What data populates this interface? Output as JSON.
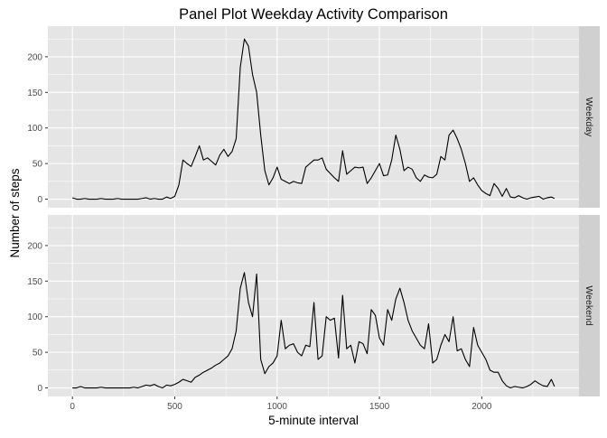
{
  "chart_data": {
    "type": "line",
    "title": "Panel Plot Weekday Activity Comparison",
    "xlabel": "5-minute interval",
    "ylabel": "Number of steps",
    "xlim": [
      -120,
      2475
    ],
    "ylim": [
      -12,
      243
    ],
    "x_ticks": [
      0,
      500,
      1000,
      1500,
      2000
    ],
    "y_ticks": [
      0,
      50,
      100,
      150,
      200
    ],
    "grid": true,
    "legend": "none",
    "colors": {
      "panel_bg": "#e5e5e5",
      "grid_major": "#ffffff",
      "strip_bg": "#d0d0d0",
      "line": "#000000",
      "text": "#000000",
      "tick_text": "#4d4d4d"
    },
    "panels": [
      {
        "strip_label": "Weekday",
        "x": [
          0,
          20,
          40,
          60,
          80,
          100,
          120,
          140,
          160,
          180,
          200,
          220,
          240,
          260,
          280,
          300,
          320,
          340,
          360,
          380,
          400,
          420,
          440,
          460,
          480,
          500,
          520,
          540,
          560,
          580,
          600,
          620,
          640,
          660,
          680,
          700,
          720,
          740,
          760,
          780,
          800,
          820,
          840,
          860,
          880,
          900,
          920,
          940,
          960,
          980,
          1000,
          1020,
          1040,
          1060,
          1080,
          1100,
          1120,
          1140,
          1160,
          1180,
          1200,
          1220,
          1240,
          1260,
          1280,
          1300,
          1320,
          1340,
          1360,
          1380,
          1400,
          1420,
          1440,
          1460,
          1480,
          1500,
          1520,
          1540,
          1560,
          1580,
          1600,
          1620,
          1640,
          1660,
          1680,
          1700,
          1720,
          1740,
          1760,
          1780,
          1800,
          1820,
          1840,
          1860,
          1880,
          1900,
          1920,
          1940,
          1960,
          1980,
          2000,
          2020,
          2040,
          2060,
          2080,
          2100,
          2120,
          2140,
          2160,
          2180,
          2200,
          2220,
          2240,
          2260,
          2280,
          2300,
          2320,
          2340,
          2355
        ],
        "values": [
          2,
          0,
          0,
          1,
          0,
          0,
          0,
          1,
          0,
          0,
          0,
          1,
          0,
          0,
          0,
          0,
          0,
          1,
          2,
          0,
          1,
          0,
          0,
          3,
          1,
          4,
          20,
          55,
          50,
          46,
          60,
          75,
          55,
          58,
          53,
          48,
          62,
          70,
          60,
          67,
          85,
          185,
          225,
          215,
          175,
          150,
          90,
          40,
          20,
          30,
          45,
          28,
          25,
          22,
          25,
          23,
          22,
          45,
          50,
          55,
          55,
          58,
          42,
          36,
          30,
          25,
          68,
          35,
          40,
          45,
          44,
          45,
          22,
          30,
          40,
          50,
          33,
          34,
          55,
          90,
          70,
          40,
          45,
          42,
          30,
          25,
          34,
          31,
          30,
          35,
          60,
          55,
          90,
          97,
          85,
          70,
          50,
          25,
          30,
          20,
          12,
          8,
          5,
          22,
          15,
          4,
          15,
          3,
          2,
          5,
          2,
          0,
          2,
          3,
          4,
          0,
          2,
          3,
          1
        ],
        "y_axis_labels": true
      },
      {
        "strip_label": "Weekend",
        "x": [
          0,
          20,
          40,
          60,
          80,
          100,
          120,
          140,
          160,
          180,
          200,
          220,
          240,
          260,
          280,
          300,
          320,
          340,
          360,
          380,
          400,
          420,
          440,
          460,
          480,
          500,
          520,
          540,
          560,
          580,
          600,
          620,
          640,
          660,
          680,
          700,
          720,
          740,
          760,
          780,
          800,
          820,
          840,
          860,
          880,
          900,
          920,
          940,
          960,
          980,
          1000,
          1020,
          1040,
          1060,
          1080,
          1100,
          1120,
          1140,
          1160,
          1180,
          1200,
          1220,
          1240,
          1260,
          1280,
          1300,
          1320,
          1340,
          1360,
          1380,
          1400,
          1420,
          1440,
          1460,
          1480,
          1500,
          1520,
          1540,
          1560,
          1580,
          1600,
          1620,
          1640,
          1660,
          1680,
          1700,
          1720,
          1740,
          1760,
          1780,
          1800,
          1820,
          1840,
          1860,
          1880,
          1900,
          1920,
          1940,
          1960,
          1980,
          2000,
          2020,
          2040,
          2060,
          2080,
          2100,
          2120,
          2140,
          2160,
          2180,
          2200,
          2220,
          2240,
          2260,
          2280,
          2300,
          2320,
          2340,
          2355
        ],
        "values": [
          0,
          0,
          2,
          0,
          0,
          0,
          0,
          1,
          0,
          0,
          0,
          0,
          0,
          0,
          0,
          1,
          0,
          2,
          4,
          3,
          5,
          2,
          0,
          4,
          3,
          5,
          8,
          12,
          10,
          8,
          15,
          18,
          22,
          25,
          28,
          32,
          35,
          40,
          45,
          55,
          80,
          140,
          162,
          120,
          100,
          160,
          40,
          20,
          30,
          35,
          45,
          95,
          55,
          60,
          62,
          50,
          45,
          60,
          58,
          120,
          40,
          45,
          100,
          95,
          98,
          42,
          130,
          55,
          60,
          35,
          65,
          62,
          48,
          110,
          102,
          70,
          60,
          110,
          95,
          125,
          140,
          120,
          95,
          80,
          70,
          60,
          55,
          90,
          35,
          40,
          60,
          75,
          65,
          100,
          52,
          55,
          40,
          30,
          85,
          60,
          50,
          40,
          25,
          22,
          22,
          10,
          3,
          0,
          2,
          1,
          0,
          2,
          5,
          10,
          6,
          3,
          2,
          12,
          2
        ],
        "y_axis_labels": true
      }
    ]
  }
}
